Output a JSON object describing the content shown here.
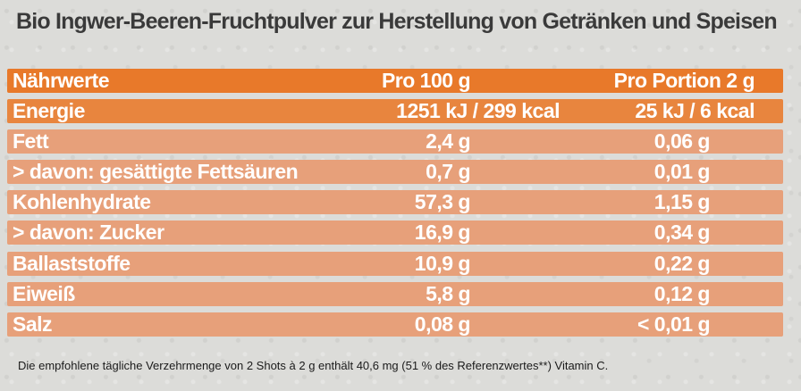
{
  "title": "Bio Ingwer-Beeren-Fruchtpulver zur Herstellung von Getränken und Speisen",
  "table": {
    "header": {
      "label": "Nährwerte",
      "per100": "Pro 100 g",
      "perPortion": "Pro Portion 2 g"
    },
    "rows": [
      {
        "label": "Energie",
        "per100": "1251 kJ / 299 kcal",
        "perPortion": "25 kJ / 6 kcal"
      },
      {
        "label": "Fett",
        "per100": "2,4 g",
        "perPortion": "0,06 g"
      },
      {
        "label": "> davon: gesättigte Fettsäuren",
        "per100": "0,7 g",
        "perPortion": "0,01 g"
      },
      {
        "label": "Kohlenhydrate",
        "per100": "57,3 g",
        "perPortion": "1,15 g"
      },
      {
        "label": "> davon: Zucker",
        "per100": "16,9 g",
        "perPortion": "0,34 g"
      },
      {
        "label": "Ballaststoffe",
        "per100": "10,9 g",
        "perPortion": "0,22 g"
      },
      {
        "label": "Eiweiß",
        "per100": "5,8 g",
        "perPortion": "0,12 g"
      },
      {
        "label": "Salz",
        "per100": "0,08 g",
        "perPortion": "< 0,01 g"
      }
    ]
  },
  "footnote": "Die empfohlene tägliche Verzehrmenge von 2 Shots à 2 g enthält 40,6 mg (51 % des Referenzwertes**) Vitamin C.",
  "colors": {
    "header": "#e8792a",
    "energy": "#e8853e",
    "row": "#e7a07a",
    "title": "#3a3a3a"
  }
}
